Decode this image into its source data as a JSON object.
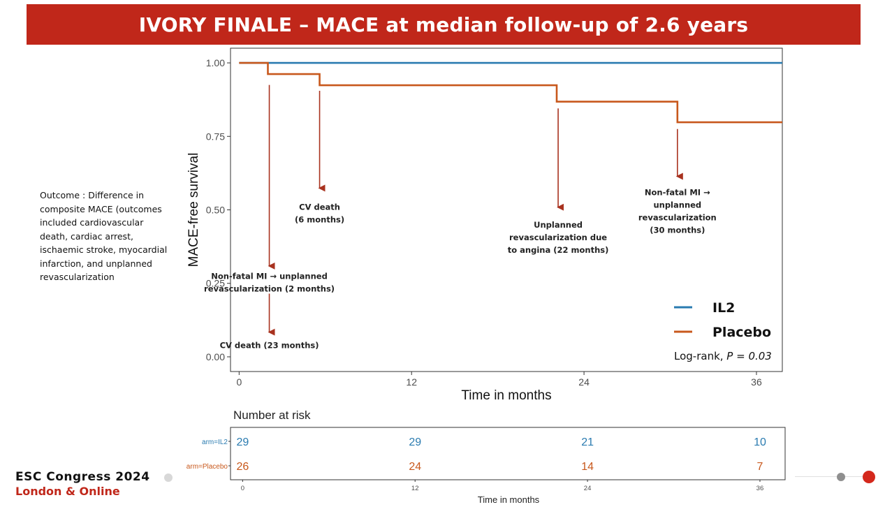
{
  "header": {
    "title": "IVORY FINALE – MACE at median follow-up of 2.6 years"
  },
  "outcome_note": "Outcome : Difference in composite MACE (outcomes included cardiovascular death, cardiac arrest, ischaemic stroke, myocardial infarction, and unplanned revascularization",
  "footer": {
    "congress": "ESC Congress 2024",
    "location": "London & Online"
  },
  "colors": {
    "banner": "#c0271a",
    "il2": "#2a7bb0",
    "placebo": "#c8581c",
    "arrow": "#a8321f"
  },
  "chart_data": {
    "type": "line",
    "title": "",
    "xlabel": "Time in months",
    "ylabel": "MACE-free survival",
    "xlim": [
      -0.6,
      37.8
    ],
    "ylim": [
      -0.05,
      1.05
    ],
    "x_ticks": [
      "0",
      "12",
      "24",
      "36"
    ],
    "y_ticks": [
      "0.00",
      "0.25",
      "0.50",
      "0.75",
      "1.00"
    ],
    "step": true,
    "series": [
      {
        "name": "IL2",
        "color": "#2a7bb0",
        "x": [
          0,
          37.8
        ],
        "y": [
          1.0,
          1.0
        ]
      },
      {
        "name": "Placebo",
        "color": "#c8581c",
        "x": [
          0,
          2,
          5.6,
          22.1,
          30.5,
          37.8
        ],
        "y": [
          1.0,
          0.962,
          0.924,
          0.868,
          0.798,
          0.798
        ]
      }
    ],
    "legend": {
      "position": "bottom-right",
      "items": [
        "IL2",
        "Placebo"
      ]
    },
    "test_label": "Log-rank, ",
    "test_p": "P = 0.03",
    "annotations": [
      {
        "text": [
          "CV death",
          "(6 months)"
        ],
        "x": 5.6,
        "y_from": 0.905,
        "y_to": 0.555,
        "label_y": 0.5
      },
      {
        "text": [
          "Non-fatal MI → unplanned",
          "revascularization (2 months)"
        ],
        "x": 2.1,
        "y_from": 0.925,
        "y_to": 0.29,
        "label_y": 0.265
      },
      {
        "text": [
          "CV death (23 months)"
        ],
        "x": 2.1,
        "y_from": 0.215,
        "y_to": 0.065,
        "label_y": 0.03
      },
      {
        "text": [
          "Unplanned",
          "revascularization due",
          "to angina (22 months)"
        ],
        "x": 22.2,
        "y_from": 0.845,
        "y_to": 0.49,
        "label_y": 0.44
      },
      {
        "text": [
          "Non-fatal MI →",
          "unplanned",
          "revascularization",
          "(30 months)"
        ],
        "x": 30.5,
        "y_from": 0.775,
        "y_to": 0.595,
        "label_y": 0.55
      }
    ],
    "risk_table": {
      "title": "Number at risk",
      "xlabel": "Time in months",
      "time_ticks": [
        "0",
        "12",
        "24",
        "36"
      ],
      "rows": [
        {
          "label": "arm=IL2",
          "color": "#2a7bb0",
          "values": [
            "29",
            "29",
            "21",
            "10"
          ]
        },
        {
          "label": "arm=Placebo",
          "color": "#c8581c",
          "values": [
            "26",
            "24",
            "14",
            "7"
          ]
        }
      ]
    }
  }
}
